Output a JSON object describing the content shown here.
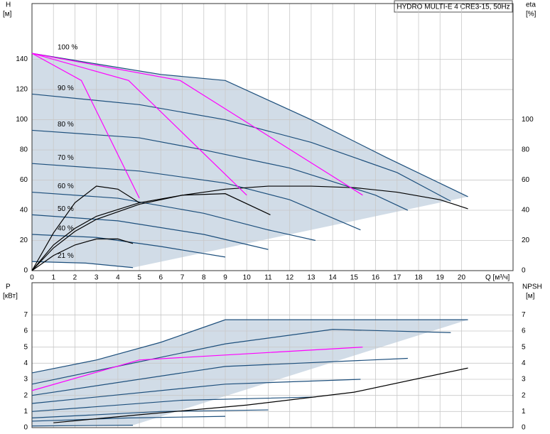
{
  "chart_data": [
    {
      "type": "line",
      "title": "HYDRO MULTI-E 4 CRE3-15, 50Hz",
      "y_label": "H",
      "y_unit": "[м]",
      "y2_label": "eta",
      "y2_unit": "[%]",
      "x_label": "Q [м³/ч]",
      "xlim": [
        0,
        22.4
      ],
      "xticks": [
        0,
        1,
        2,
        3,
        4,
        5,
        6,
        7,
        8,
        9,
        10,
        11,
        12,
        13,
        14,
        15,
        16,
        17,
        18,
        19,
        20
      ],
      "ylim": [
        0,
        177
      ],
      "yticks": [
        0,
        20,
        40,
        60,
        80,
        100,
        120,
        140
      ],
      "y2lim": [
        0,
        177
      ],
      "y2ticks": [
        0,
        20,
        40,
        60,
        80,
        100
      ],
      "grid": true,
      "shade": true,
      "series": [
        {
          "name": "100 %",
          "color": "#1d4f7c",
          "x": [
            0,
            3,
            6,
            9,
            13,
            16.5,
            20.3
          ],
          "values": [
            144,
            137,
            130,
            126,
            100,
            75,
            49
          ]
        },
        {
          "name": "90 %",
          "color": "#1d4f7c",
          "x": [
            0,
            5,
            9,
            13,
            17,
            19.5
          ],
          "values": [
            117,
            110,
            100,
            85,
            65,
            46
          ]
        },
        {
          "name": "80 %",
          "color": "#1d4f7c",
          "x": [
            0,
            5,
            8,
            12,
            16,
            17.5
          ],
          "values": [
            93,
            88,
            80,
            68,
            50,
            40
          ]
        },
        {
          "name": "70 %",
          "color": "#1d4f7c",
          "x": [
            0,
            5,
            9,
            12,
            15.3
          ],
          "values": [
            71,
            66,
            58,
            47,
            27
          ]
        },
        {
          "name": "60 %",
          "color": "#1d4f7c",
          "x": [
            0,
            4,
            8,
            11,
            13.2
          ],
          "values": [
            52,
            48,
            38,
            27,
            20
          ]
        },
        {
          "name": "50 %",
          "color": "#1d4f7c",
          "x": [
            0,
            4,
            8,
            11
          ],
          "values": [
            37,
            33,
            24,
            14
          ]
        },
        {
          "name": "40 %",
          "color": "#1d4f7c",
          "x": [
            0,
            3,
            6,
            9
          ],
          "values": [
            24,
            22,
            16,
            9
          ]
        },
        {
          "name": "21 %",
          "color": "#1d4f7c",
          "x": [
            0,
            2.5,
            4.7
          ],
          "values": [
            6,
            5,
            2
          ]
        },
        {
          "color": "#000000",
          "axis": "y2",
          "x": [
            0,
            1,
            2,
            3,
            5,
            7,
            9,
            11,
            13,
            15,
            17,
            19,
            20.3
          ],
          "values": [
            0,
            15,
            26,
            34,
            44,
            50,
            54,
            56,
            56,
            55,
            52,
            47,
            41
          ]
        },
        {
          "color": "#000000",
          "axis": "y2",
          "x": [
            0,
            1,
            2,
            3,
            5,
            7,
            9,
            11.1
          ],
          "values": [
            0,
            17,
            28,
            36,
            45,
            50,
            51,
            37
          ]
        },
        {
          "color": "#000000",
          "axis": "y2",
          "x": [
            0,
            1,
            2,
            3,
            4,
            5
          ],
          "values": [
            0,
            25,
            45,
            56,
            54,
            45
          ]
        },
        {
          "color": "#000000",
          "axis": "y2",
          "x": [
            0,
            1,
            2,
            3,
            4,
            4.7
          ],
          "values": [
            0,
            10,
            17,
            21,
            21,
            18
          ]
        },
        {
          "color": "#ff00ff",
          "x": [
            0,
            2.3,
            5
          ],
          "values": [
            144,
            126,
            48
          ]
        },
        {
          "color": "#ff00ff",
          "x": [
            0,
            4.5,
            10
          ],
          "values": [
            144,
            126,
            50
          ]
        },
        {
          "color": "#ff00ff",
          "x": [
            0,
            6.9,
            15.4
          ],
          "values": [
            144,
            126,
            50
          ]
        }
      ]
    },
    {
      "type": "line",
      "y_label": "P",
      "y_unit": "[кВт]",
      "y2_label": "NPSH",
      "y2_unit": "[м]",
      "xlim": [
        0,
        22.4
      ],
      "ylim": [
        0,
        9
      ],
      "yticks": [
        0,
        1,
        2,
        3,
        4,
        5,
        6,
        7
      ],
      "y2lim": [
        0,
        9
      ],
      "y2ticks": [
        0,
        1,
        2,
        3,
        4,
        5,
        6,
        7
      ],
      "grid": true,
      "shade": true,
      "series": [
        {
          "color": "#1d4f7c",
          "x": [
            0,
            3,
            6,
            9,
            20.3
          ],
          "values": [
            3.4,
            4.2,
            5.3,
            6.7,
            6.7
          ]
        },
        {
          "color": "#1d4f7c",
          "x": [
            0,
            9,
            14,
            19.5
          ],
          "values": [
            2.7,
            5.2,
            6.1,
            5.9
          ]
        },
        {
          "color": "#1d4f7c",
          "x": [
            0,
            9,
            17.5
          ],
          "values": [
            2.0,
            3.8,
            4.3
          ]
        },
        {
          "color": "#1d4f7c",
          "x": [
            0,
            9,
            15.3
          ],
          "values": [
            1.5,
            2.7,
            3.0
          ]
        },
        {
          "color": "#1d4f7c",
          "x": [
            0,
            7,
            13.2
          ],
          "values": [
            1.0,
            1.7,
            1.9
          ]
        },
        {
          "color": "#1d4f7c",
          "x": [
            0,
            6,
            11
          ],
          "values": [
            0.6,
            1.0,
            1.1
          ]
        },
        {
          "color": "#1d4f7c",
          "x": [
            0,
            4.5,
            9
          ],
          "values": [
            0.4,
            0.6,
            0.7
          ]
        },
        {
          "color": "#1d4f7c",
          "x": [
            0,
            4.7
          ],
          "values": [
            0.1,
            0.15
          ]
        },
        {
          "color": "#000000",
          "axis": "y2",
          "x": [
            1,
            5,
            10,
            15,
            20.3
          ],
          "values": [
            0.3,
            0.8,
            1.4,
            2.2,
            3.7
          ]
        },
        {
          "color": "#ff00ff",
          "x": [
            0,
            5,
            15.4
          ],
          "values": [
            2.3,
            4.2,
            5.0
          ]
        }
      ]
    }
  ]
}
